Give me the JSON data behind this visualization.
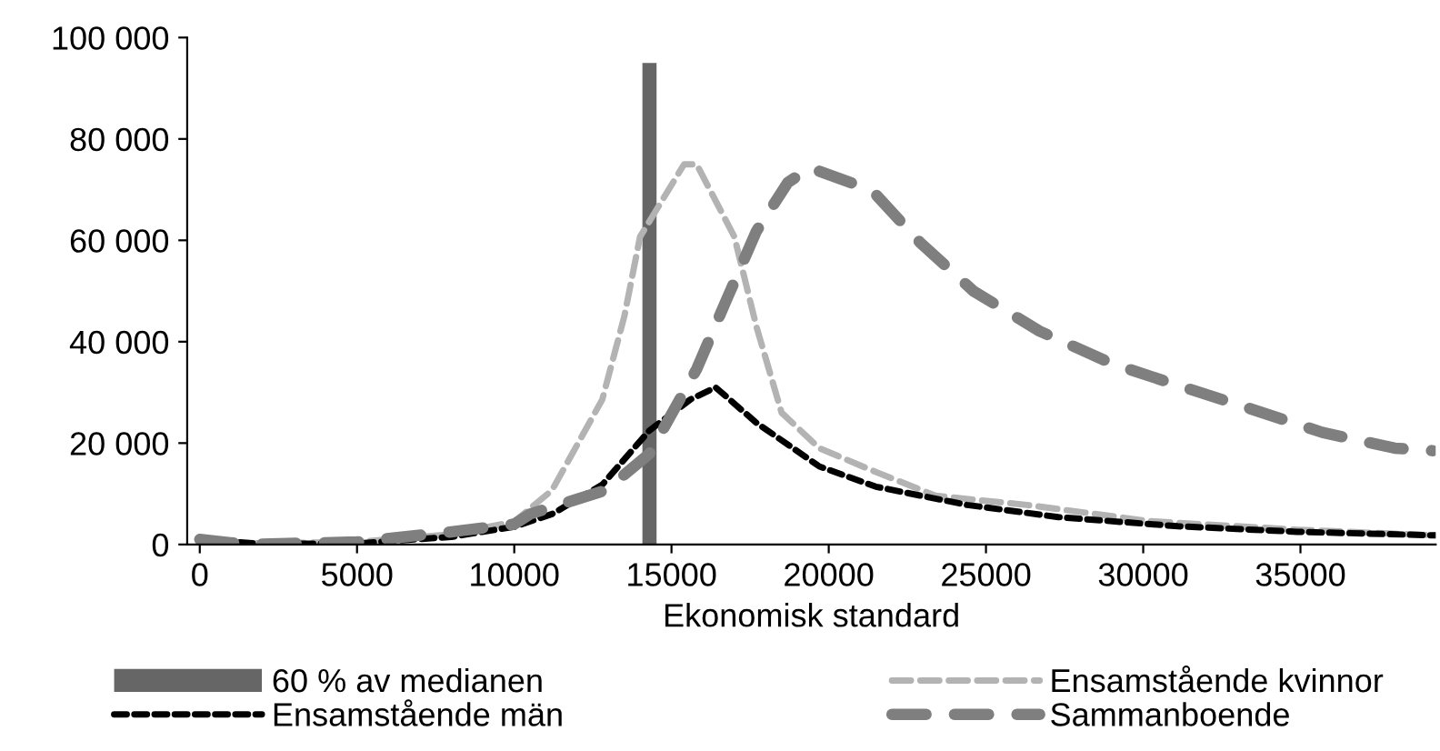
{
  "chart_data": {
    "type": "line",
    "xlabel": "Ekonomisk standard",
    "xlim": [
      -400,
      39300
    ],
    "xticks": [
      0,
      5000,
      10000,
      15000,
      20000,
      25000,
      30000,
      35000
    ],
    "ylim": [
      0,
      100000
    ],
    "yticks": [
      {
        "value": 0,
        "label": "0"
      },
      {
        "value": 20000,
        "label": "20 000"
      },
      {
        "value": 40000,
        "label": "40 000"
      },
      {
        "value": 60000,
        "label": "60 000"
      },
      {
        "value": 80000,
        "label": "80 000"
      },
      {
        "value": 100000,
        "label": "100 000"
      }
    ],
    "grid": false,
    "legend": "bottom",
    "line_style": "dashed",
    "series": [
      {
        "name": "60 % av medianen",
        "type": "bar",
        "color": "#666666",
        "x": [
          14300
        ],
        "values": [
          95000
        ]
      },
      {
        "name": "Ensamstående kvinnor",
        "color": "#b3b3b3",
        "x": [
          0,
          1500,
          5000,
          8000,
          10000,
          11200,
          12800,
          13500,
          14000,
          15400,
          15800,
          17000,
          17700,
          18500,
          19700,
          21500,
          23400,
          26300,
          30200,
          34900,
          39300
        ],
        "values": [
          1000,
          200,
          500,
          2000,
          4500,
          10700,
          28600,
          45000,
          60700,
          75000,
          75000,
          60700,
          43000,
          26000,
          19000,
          14300,
          9600,
          7800,
          4600,
          2900,
          1800
        ]
      },
      {
        "name": "Ensamstående män",
        "color": "#000000",
        "x": [
          0,
          2000,
          5000,
          8000,
          10000,
          11200,
          12800,
          14300,
          15600,
          16400,
          17700,
          19700,
          21500,
          24400,
          27300,
          31100,
          34900,
          39300
        ],
        "values": [
          1000,
          100,
          200,
          1500,
          3500,
          6000,
          11800,
          22500,
          28600,
          31000,
          24000,
          15400,
          11400,
          7800,
          5400,
          3600,
          2500,
          1800
        ]
      },
      {
        "name": "Sammanboende",
        "color": "#7f7f7f",
        "x": [
          0,
          1500,
          5000,
          8000,
          10000,
          10500,
          12900,
          14300,
          15800,
          16800,
          17700,
          18700,
          19400,
          21000,
          21500,
          22900,
          24600,
          26700,
          29000,
          31100,
          33400,
          35700,
          38000,
          39200
        ],
        "values": [
          1000,
          0,
          500,
          2500,
          4000,
          6000,
          10700,
          17900,
          34600,
          49000,
          61800,
          71400,
          74300,
          70700,
          69000,
          59600,
          50000,
          42100,
          35700,
          31400,
          26800,
          22100,
          19000,
          18500
        ]
      }
    ]
  }
}
